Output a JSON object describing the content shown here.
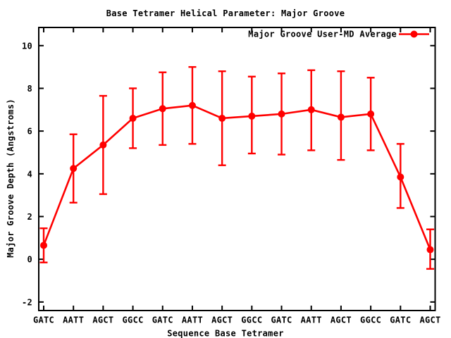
{
  "chart_data": {
    "type": "line",
    "title": "Base Tetramer Helical Parameter: Major Groove",
    "xlabel": "Sequence Base Tetramer",
    "ylabel": "Major Groove Depth (Angstroms)",
    "legend": "Major Groove User-MD Average",
    "legend_position": "top-right-inside",
    "grid": false,
    "background_color": "#ffffff",
    "text_color": "#000000",
    "categories": [
      "GATC",
      "AATT",
      "AGCT",
      "GGCC",
      "GATC",
      "AATT",
      "AGCT",
      "GGCC",
      "GATC",
      "AATT",
      "AGCT",
      "GGCC",
      "GATC",
      "AGCT"
    ],
    "y_ticks": [
      -2,
      0,
      2,
      4,
      6,
      8,
      10
    ],
    "ylim": [
      -2.4,
      10.85
    ],
    "error_bars": true,
    "series": [
      {
        "name": "Major Groove User-MD Average",
        "color": "#ff0000",
        "marker": "filled-circle",
        "values": [
          0.65,
          4.25,
          5.35,
          6.6,
          7.05,
          7.2,
          6.6,
          6.7,
          6.8,
          7.0,
          6.65,
          6.8,
          3.85,
          0.45
        ],
        "error_low": [
          -0.15,
          2.65,
          3.05,
          5.2,
          5.35,
          5.4,
          4.4,
          4.95,
          4.9,
          5.1,
          4.65,
          5.1,
          2.4,
          -0.45
        ],
        "error_high": [
          1.45,
          5.85,
          7.65,
          8.0,
          8.75,
          9.0,
          8.8,
          8.55,
          8.7,
          8.85,
          8.8,
          8.5,
          5.4,
          1.4
        ]
      }
    ]
  }
}
